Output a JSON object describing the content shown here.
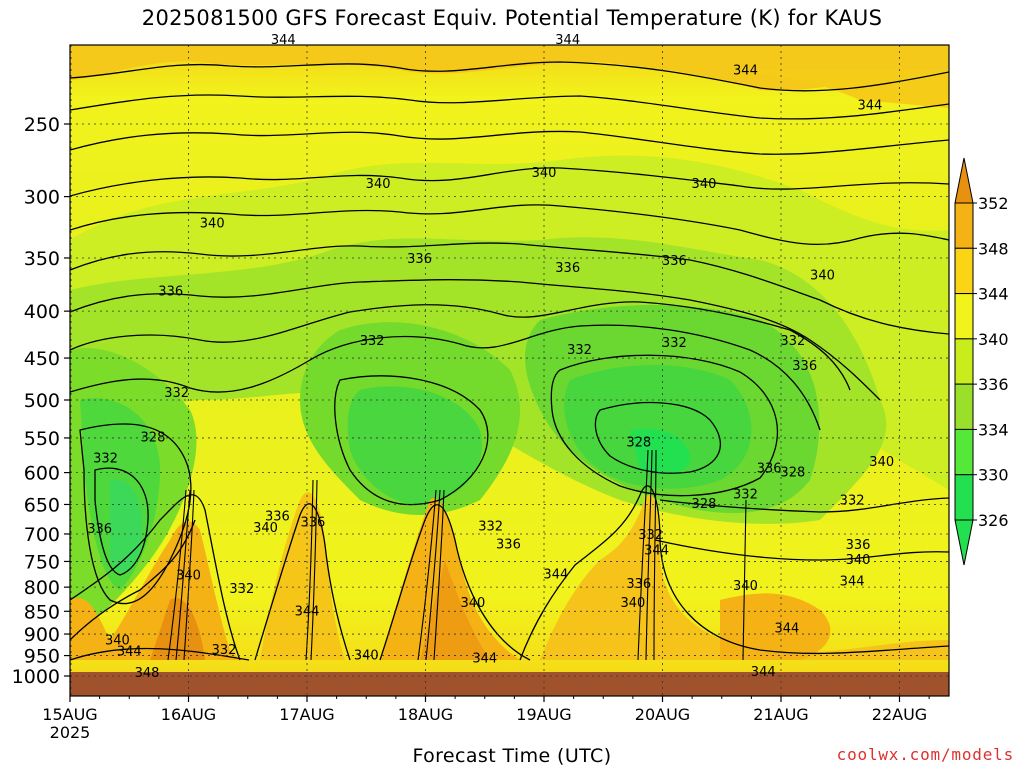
{
  "header": {
    "title": "2025081500 GFS Forecast Equiv. Potential Temperature (K) for KAUS"
  },
  "footer": {
    "xlabel": "Forecast Time (UTC)",
    "credit": "coolwx.com/models"
  },
  "chart_data": {
    "type": "heatmap",
    "title": "2025081500 GFS Forecast Equiv. Potential Temperature (K) for KAUS",
    "xlabel": "Forecast Time (UTC)",
    "ylabel": "",
    "x_ticks": [
      "15AUG",
      "16AUG",
      "17AUG",
      "18AUG",
      "19AUG",
      "20AUG",
      "21AUG",
      "22AUG"
    ],
    "x_year": "2025",
    "y_ticks": [
      250,
      300,
      350,
      400,
      450,
      500,
      550,
      600,
      650,
      700,
      750,
      800,
      850,
      900,
      950,
      1000
    ],
    "colorbar_levels": [
      326,
      330,
      334,
      336,
      340,
      344,
      348,
      352
    ],
    "colorbar_colors": [
      "#22e050",
      "#55e838",
      "#9ae02a",
      "#c9ec1c",
      "#f2f21c",
      "#fbd416",
      "#f4b215",
      "#e8900f"
    ],
    "colorbar_extend": "both",
    "contour_labels": [
      {
        "label": "344",
        "t": 1.8,
        "p": 202
      },
      {
        "label": "344",
        "t": 4.2,
        "p": 202
      },
      {
        "label": "344",
        "t": 5.7,
        "p": 218
      },
      {
        "label": "344",
        "t": 6.75,
        "p": 238
      },
      {
        "label": "340",
        "t": 2.6,
        "p": 290
      },
      {
        "label": "340",
        "t": 4.0,
        "p": 282
      },
      {
        "label": "340",
        "t": 5.35,
        "p": 290
      },
      {
        "label": "340",
        "t": 1.2,
        "p": 320
      },
      {
        "label": "340",
        "t": 6.35,
        "p": 365
      },
      {
        "label": "336",
        "t": 2.95,
        "p": 350
      },
      {
        "label": "336",
        "t": 4.2,
        "p": 358
      },
      {
        "label": "336",
        "t": 5.1,
        "p": 352
      },
      {
        "label": "336",
        "t": 0.85,
        "p": 380
      },
      {
        "label": "332",
        "t": 2.55,
        "p": 430
      },
      {
        "label": "332",
        "t": 4.3,
        "p": 440
      },
      {
        "label": "332",
        "t": 5.1,
        "p": 432
      },
      {
        "label": "332",
        "t": 6.1,
        "p": 430
      },
      {
        "label": "336",
        "t": 6.2,
        "p": 458
      },
      {
        "label": "332",
        "t": 0.9,
        "p": 490
      },
      {
        "label": "328",
        "t": 0.7,
        "p": 548
      },
      {
        "label": "332",
        "t": 0.3,
        "p": 578
      },
      {
        "label": "328",
        "t": 4.8,
        "p": 555
      },
      {
        "label": "336",
        "t": 5.9,
        "p": 592
      },
      {
        "label": "328",
        "t": 6.1,
        "p": 598
      },
      {
        "label": "340",
        "t": 6.85,
        "p": 583
      },
      {
        "label": "332",
        "t": 5.7,
        "p": 632
      },
      {
        "label": "328",
        "t": 5.35,
        "p": 648
      },
      {
        "label": "332",
        "t": 6.6,
        "p": 642
      },
      {
        "label": "336",
        "t": 0.25,
        "p": 690
      },
      {
        "label": "336",
        "t": 1.75,
        "p": 668
      },
      {
        "label": "336",
        "t": 2.05,
        "p": 678
      },
      {
        "label": "340",
        "t": 1.65,
        "p": 688
      },
      {
        "label": "332",
        "t": 3.55,
        "p": 685
      },
      {
        "label": "336",
        "t": 3.7,
        "p": 717
      },
      {
        "label": "332",
        "t": 4.9,
        "p": 700
      },
      {
        "label": "344",
        "t": 4.95,
        "p": 728
      },
      {
        "label": "336",
        "t": 6.65,
        "p": 718
      },
      {
        "label": "340",
        "t": 6.65,
        "p": 745
      },
      {
        "label": "340",
        "t": 1.0,
        "p": 775
      },
      {
        "label": "344",
        "t": 4.1,
        "p": 773
      },
      {
        "label": "344",
        "t": 6.6,
        "p": 787
      },
      {
        "label": "336",
        "t": 4.8,
        "p": 792
      },
      {
        "label": "340",
        "t": 5.7,
        "p": 796
      },
      {
        "label": "332",
        "t": 1.45,
        "p": 802
      },
      {
        "label": "340",
        "t": 3.4,
        "p": 830
      },
      {
        "label": "340",
        "t": 4.75,
        "p": 830
      },
      {
        "label": "344",
        "t": 2.0,
        "p": 848
      },
      {
        "label": "344",
        "t": 6.05,
        "p": 885
      },
      {
        "label": "340",
        "t": 0.4,
        "p": 912
      },
      {
        "label": "344",
        "t": 0.5,
        "p": 938
      },
      {
        "label": "332",
        "t": 1.3,
        "p": 935
      },
      {
        "label": "340",
        "t": 2.5,
        "p": 948
      },
      {
        "label": "344",
        "t": 3.5,
        "p": 955
      },
      {
        "label": "344",
        "t": 5.85,
        "p": 987
      },
      {
        "label": "348",
        "t": 0.65,
        "p": 990
      }
    ]
  }
}
